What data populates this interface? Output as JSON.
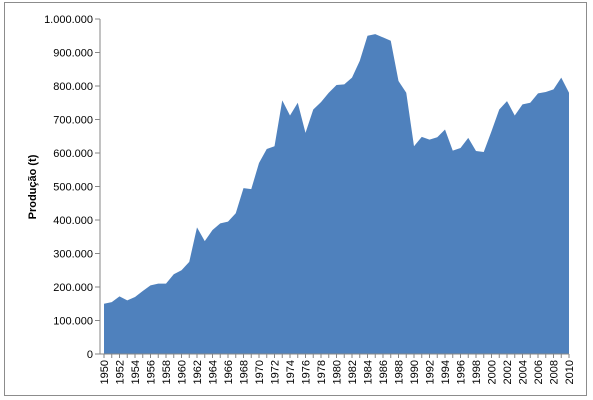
{
  "chart_data": {
    "type": "area",
    "title": "",
    "xlabel": "",
    "ylabel": "Produção (t)",
    "ylim": [
      0,
      1000000
    ],
    "grid": false,
    "legend": "none",
    "fill_color": "#4f81bd",
    "y_ticks": [
      "0",
      "100.000",
      "200.000",
      "300.000",
      "400.000",
      "500.000",
      "600.000",
      "700.000",
      "800.000",
      "900.000",
      "1.000.000"
    ],
    "x_ticks": [
      "1950",
      "1952",
      "1954",
      "1956",
      "1958",
      "1960",
      "1962",
      "1964",
      "1966",
      "1968",
      "1970",
      "1972",
      "1974",
      "1976",
      "1978",
      "1980",
      "1982",
      "1984",
      "1986",
      "1988",
      "1990",
      "1992",
      "1994",
      "1996",
      "1998",
      "2000",
      "2002",
      "2004",
      "2006",
      "2008",
      "2010"
    ],
    "x": [
      1950,
      1951,
      1952,
      1953,
      1954,
      1955,
      1956,
      1957,
      1958,
      1959,
      1960,
      1961,
      1962,
      1963,
      1964,
      1965,
      1966,
      1967,
      1968,
      1969,
      1970,
      1971,
      1972,
      1973,
      1974,
      1975,
      1976,
      1977,
      1978,
      1979,
      1980,
      1981,
      1982,
      1983,
      1984,
      1985,
      1986,
      1987,
      1988,
      1989,
      1990,
      1991,
      1992,
      1993,
      1994,
      1995,
      1996,
      1997,
      1998,
      1999,
      2000,
      2001,
      2002,
      2003,
      2004,
      2005,
      2006,
      2007,
      2008,
      2009,
      2010
    ],
    "values": [
      150000,
      155000,
      172000,
      160000,
      170000,
      188000,
      205000,
      210000,
      210000,
      238000,
      250000,
      275000,
      378000,
      337000,
      370000,
      390000,
      395000,
      420000,
      495000,
      492000,
      570000,
      612000,
      620000,
      757000,
      712000,
      750000,
      660000,
      730000,
      752000,
      780000,
      803000,
      805000,
      825000,
      875000,
      950000,
      955000,
      945000,
      935000,
      815000,
      780000,
      620000,
      648000,
      640000,
      647000,
      670000,
      607000,
      615000,
      645000,
      606000,
      603000,
      665000,
      730000,
      755000,
      712000,
      745000,
      750000,
      778000,
      782000,
      790000,
      825000,
      780000
    ]
  }
}
